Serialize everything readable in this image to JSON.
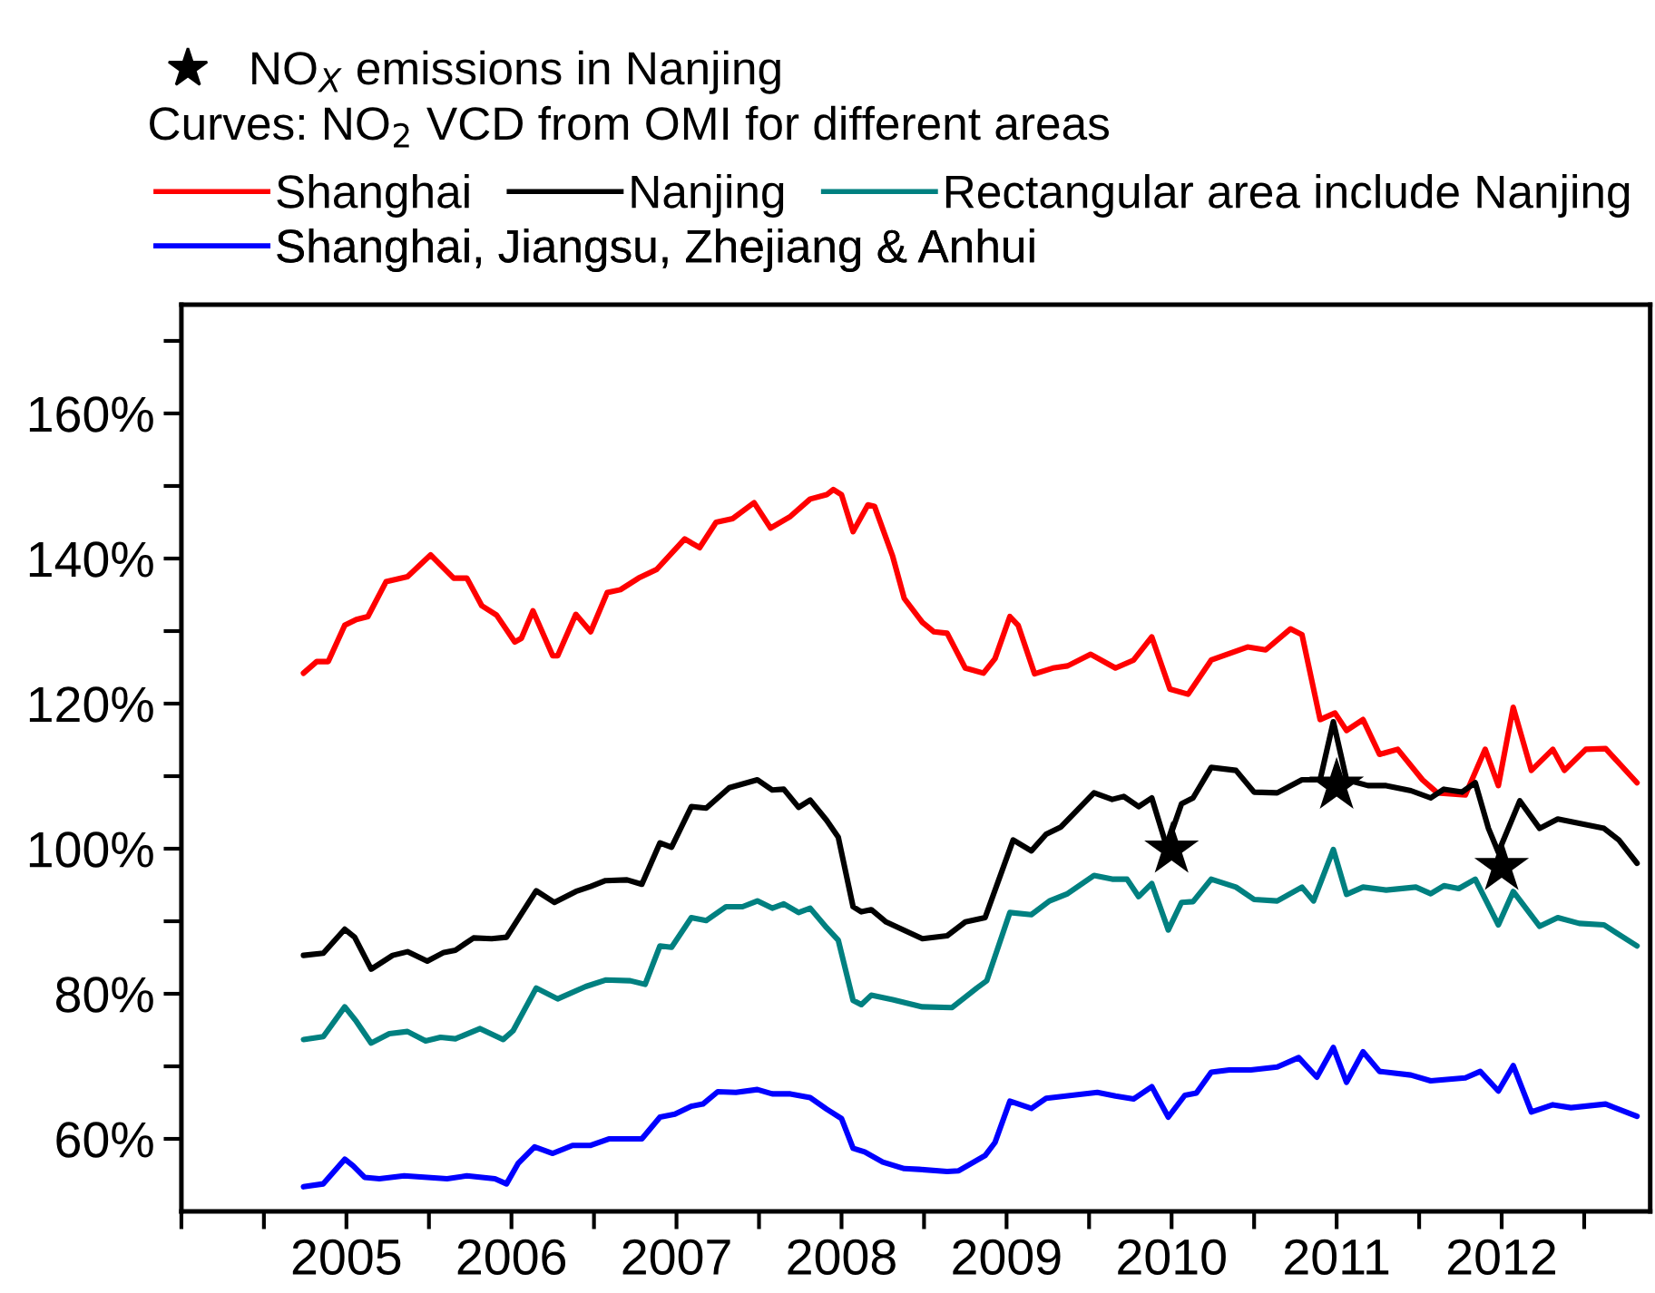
{
  "chart_data": {
    "type": "line",
    "legend": "top",
    "legend_title": "Curves: NO$_{2}$ VCD from OMI for different areas",
    "line_style": "solid",
    "grid": false,
    "xlim": [
      2004,
      2012.9
    ],
    "xticks": [
      {
        "value": 2004,
        "label": null
      },
      {
        "value": 2004.5,
        "label": null
      },
      2005,
      {
        "value": 2005.5,
        "label": null
      },
      2006,
      {
        "value": 2006.5,
        "label": null
      },
      2007,
      {
        "value": 2007.5,
        "label": null
      },
      2008,
      {
        "value": 2008.5,
        "label": null
      },
      2009,
      {
        "value": 2009.5,
        "label": null
      },
      2010,
      {
        "value": 2010.5,
        "label": null
      },
      2011,
      {
        "value": 2011.5,
        "label": null
      },
      2012,
      {
        "value": 2012.5,
        "label": null
      }
    ],
    "ylim": [
      50,
      175
    ],
    "yticks": [
      {
        "value": 60,
        "label": "60%"
      },
      {
        "value": 70,
        "label": null
      },
      {
        "value": 80,
        "label": "80%"
      },
      {
        "value": 90,
        "label": null
      },
      {
        "value": 100,
        "label": "100%"
      },
      {
        "value": 110,
        "label": null
      },
      {
        "value": 120,
        "label": "120%"
      },
      {
        "value": 130,
        "label": null
      },
      {
        "value": 140,
        "label": "140%"
      },
      {
        "value": 150,
        "label": null
      },
      {
        "value": 160,
        "label": "160%"
      },
      {
        "value": 170,
        "label": null
      }
    ],
    "series": [
      {
        "name": "NO$_{X}$ emissions in Nanjing",
        "type": "scatter",
        "marker": "star",
        "color": "#000000",
        "x": [
          2010,
          2011,
          2012
        ],
        "values": [
          99.9,
          108.7,
          97.5
        ]
      },
      {
        "name": "Shanghai",
        "color": "#ff0000",
        "x": [
          2004.74,
          2004.82,
          2004.89,
          2004.99,
          2005.06,
          2005.13,
          2005.24,
          2005.37,
          2005.51,
          2005.65,
          2005.73,
          2005.82,
          2005.91,
          2006.02,
          2006.06,
          2006.13,
          2006.25,
          2006.28,
          2006.39,
          2006.48,
          2006.58,
          2006.66,
          2006.77,
          2006.88,
          2007.05,
          2007.14,
          2007.24,
          2007.34,
          2007.47,
          2007.57,
          2007.69,
          2007.81,
          2007.91,
          2007.95,
          2008.0,
          2008.07,
          2008.16,
          2008.2,
          2008.31,
          2008.38,
          2008.49,
          2008.56,
          2008.64,
          2008.75,
          2008.86,
          2008.93,
          2009.02,
          2009.07,
          2009.17,
          2009.28,
          2009.37,
          2009.51,
          2009.66,
          2009.77,
          2009.88,
          2009.99,
          2010.1,
          2010.24,
          2010.46,
          2010.57,
          2010.72,
          2010.79,
          2010.9,
          2010.99,
          2011.06,
          2011.16,
          2011.26,
          2011.37,
          2011.52,
          2011.61,
          2011.78,
          2011.9,
          2011.98,
          2012.07,
          2012.18,
          2012.31,
          2012.38,
          2012.51,
          2012.63,
          2012.82
        ],
        "values": [
          124.2,
          125.8,
          125.8,
          130.8,
          131.6,
          132,
          136.8,
          137.5,
          140.5,
          137.3,
          137.3,
          133.5,
          132.2,
          128.5,
          129,
          132.8,
          126.6,
          126.6,
          132.3,
          129.9,
          135.3,
          135.7,
          137.3,
          138.5,
          142.7,
          141.5,
          145,
          145.5,
          147.7,
          144.2,
          145.8,
          148.2,
          148.8,
          149.5,
          148.8,
          143.7,
          147.4,
          147.2,
          140.3,
          134.5,
          131.2,
          129.9,
          129.7,
          124.9,
          124.2,
          126.2,
          132,
          130.8,
          124.1,
          124.9,
          125.2,
          126.8,
          124.9,
          126,
          129.2,
          122,
          121.3,
          126,
          127.8,
          127.4,
          130.3,
          129.5,
          117.8,
          118.7,
          116.3,
          117.8,
          113,
          113.7,
          109.5,
          107.7,
          107.4,
          113.7,
          108.7,
          119.5,
          110.8,
          113.7,
          110.8,
          113.7,
          113.8,
          109.1
        ]
      },
      {
        "name": "Nanjing",
        "color": "#000000",
        "x": [
          2004.74,
          2004.86,
          2004.99,
          2005.05,
          2005.15,
          2005.28,
          2005.37,
          2005.49,
          2005.59,
          2005.66,
          2005.77,
          2005.88,
          2005.97,
          2006.04,
          2006.15,
          2006.26,
          2006.39,
          2006.48,
          2006.57,
          2006.7,
          2006.79,
          2006.9,
          2006.97,
          2007.09,
          2007.18,
          2007.32,
          2007.49,
          2007.58,
          2007.65,
          2007.74,
          2007.81,
          2007.91,
          2007.98,
          2008.07,
          2008.12,
          2008.18,
          2008.27,
          2008.49,
          2008.64,
          2008.75,
          2008.87,
          2009.04,
          2009.15,
          2009.24,
          2009.33,
          2009.53,
          2009.64,
          2009.71,
          2009.8,
          2009.88,
          2009.97,
          2010.06,
          2010.13,
          2010.24,
          2010.39,
          2010.5,
          2010.64,
          2010.79,
          2010.9,
          2010.98,
          2011.06,
          2011.19,
          2011.3,
          2011.45,
          2011.57,
          2011.65,
          2011.76,
          2011.84,
          2011.92,
          2011.98,
          2012.11,
          2012.23,
          2012.34,
          2012.62,
          2012.71,
          2012.82
        ],
        "values": [
          85.3,
          85.6,
          88.9,
          87.8,
          83.4,
          85.3,
          85.8,
          84.5,
          85.7,
          86,
          87.7,
          87.6,
          87.8,
          90.3,
          94.2,
          92.6,
          94.1,
          94.8,
          95.6,
          95.7,
          95.1,
          100.8,
          100.2,
          105.8,
          105.6,
          108.4,
          109.5,
          108.1,
          108.2,
          105.7,
          106.7,
          103.9,
          101.6,
          92,
          91.3,
          91.6,
          89.9,
          87.6,
          88,
          89.9,
          90.5,
          101.2,
          99.7,
          102,
          103,
          107.7,
          106.8,
          107.2,
          105.8,
          107,
          100.3,
          106.2,
          107,
          111.2,
          110.8,
          107.8,
          107.7,
          109.5,
          109.5,
          117.5,
          109.5,
          108.7,
          108.7,
          108,
          107,
          108.2,
          107.8,
          109.1,
          102.8,
          99.5,
          106.6,
          102.8,
          104.1,
          102.8,
          101.2,
          98
        ]
      },
      {
        "name": "Rectangular area include Nanjing",
        "color": "#008080",
        "x": [
          2004.74,
          2004.86,
          2004.99,
          2005.06,
          2005.15,
          2005.26,
          2005.37,
          2005.48,
          2005.57,
          2005.66,
          2005.81,
          2005.95,
          2006.01,
          2006.15,
          2006.28,
          2006.45,
          2006.57,
          2006.72,
          2006.81,
          2006.9,
          2006.97,
          2007.09,
          2007.18,
          2007.3,
          2007.4,
          2007.49,
          2007.58,
          2007.65,
          2007.74,
          2007.81,
          2007.91,
          2007.98,
          2008.07,
          2008.12,
          2008.18,
          2008.31,
          2008.49,
          2008.67,
          2008.82,
          2008.88,
          2009.02,
          2009.15,
          2009.26,
          2009.37,
          2009.53,
          2009.64,
          2009.73,
          2009.8,
          2009.88,
          2009.98,
          2010.06,
          2010.13,
          2010.24,
          2010.39,
          2010.5,
          2010.64,
          2010.79,
          2010.86,
          2010.98,
          2011.06,
          2011.16,
          2011.3,
          2011.48,
          2011.57,
          2011.65,
          2011.74,
          2011.84,
          2011.98,
          2012.07,
          2012.23,
          2012.34,
          2012.47,
          2012.62,
          2012.82
        ],
        "values": [
          73.7,
          74.1,
          78.2,
          76.2,
          73.2,
          74.5,
          74.8,
          73.5,
          74,
          73.8,
          75.2,
          73.7,
          74.9,
          80.8,
          79.3,
          81,
          81.9,
          81.8,
          81.3,
          86.6,
          86.4,
          90.5,
          90.1,
          92,
          92,
          92.8,
          91.8,
          92.4,
          91.2,
          91.8,
          89.1,
          87.4,
          79.1,
          78.5,
          79.8,
          79.2,
          78.2,
          78.1,
          80.8,
          81.8,
          91.2,
          90.9,
          92.8,
          93.8,
          96.3,
          95.8,
          95.8,
          93.4,
          95.2,
          88.8,
          92.6,
          92.7,
          95.8,
          94.7,
          93,
          92.8,
          94.7,
          92.8,
          99.9,
          93.7,
          94.7,
          94.3,
          94.7,
          93.8,
          94.9,
          94.5,
          95.8,
          89.5,
          94.1,
          89.3,
          90.5,
          89.7,
          89.5,
          86.6
        ]
      },
      {
        "name": "Shanghai, Jiangsu, Zhejiang & Anhui",
        "color": "#0000ff",
        "x": [
          2004.74,
          2004.86,
          2004.99,
          2005.04,
          2005.11,
          2005.2,
          2005.35,
          2005.61,
          2005.73,
          2005.9,
          2005.97,
          2006.04,
          2006.14,
          2006.25,
          2006.37,
          2006.48,
          2006.59,
          2006.79,
          2006.9,
          2006.99,
          2007.09,
          2007.16,
          2007.25,
          2007.36,
          2007.49,
          2007.58,
          2007.69,
          2007.81,
          2007.91,
          2008.0,
          2008.07,
          2008.14,
          2008.25,
          2008.38,
          2008.47,
          2008.64,
          2008.71,
          2008.87,
          2008.93,
          2009.02,
          2009.15,
          2009.24,
          2009.55,
          2009.66,
          2009.77,
          2009.88,
          2009.98,
          2010.08,
          2010.15,
          2010.24,
          2010.35,
          2010.48,
          2010.64,
          2010.77,
          2010.88,
          2010.98,
          2011.06,
          2011.16,
          2011.26,
          2011.45,
          2011.57,
          2011.78,
          2011.87,
          2011.98,
          2012.07,
          2012.18,
          2012.31,
          2012.42,
          2012.63,
          2012.82
        ],
        "values": [
          53.4,
          53.8,
          57.2,
          56.3,
          54.7,
          54.5,
          54.9,
          54.5,
          54.9,
          54.5,
          53.8,
          56.6,
          58.9,
          58,
          59.1,
          59.1,
          60,
          60,
          63,
          63.4,
          64.5,
          64.8,
          66.5,
          66.4,
          66.8,
          66.2,
          66.2,
          65.7,
          64.1,
          62.8,
          58.7,
          58.2,
          56.8,
          55.9,
          55.8,
          55.5,
          55.6,
          57.7,
          59.5,
          65.2,
          64.2,
          65.6,
          66.4,
          65.9,
          65.5,
          67.2,
          63,
          66,
          66.3,
          69.2,
          69.5,
          69.5,
          69.9,
          71.2,
          68.5,
          72.6,
          67.8,
          72,
          69.3,
          68.8,
          68,
          68.4,
          69.3,
          66.6,
          70.1,
          63.7,
          64.7,
          64.3,
          64.8,
          63.1
        ]
      }
    ]
  }
}
